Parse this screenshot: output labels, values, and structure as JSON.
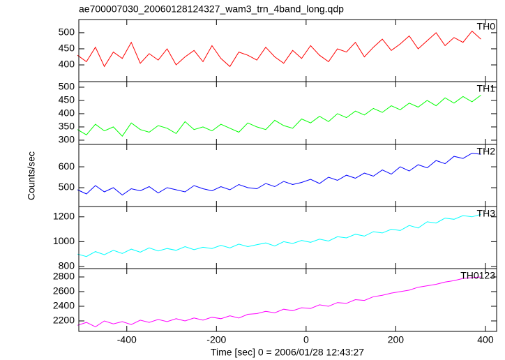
{
  "figure": {
    "title": "ae700007030_20060128124327_wam3_trn_4band_long.qdp",
    "xlabel": "Time [sec] 0 = 2006/01/28 12:43:27",
    "ylabel": "Counts/sec"
  },
  "chart_data": [
    {
      "type": "line",
      "title": "TH0",
      "color": "#ff0000",
      "x": [
        -510,
        -490,
        -470,
        -450,
        -430,
        -410,
        -390,
        -370,
        -350,
        -330,
        -310,
        -290,
        -270,
        -250,
        -230,
        -210,
        -190,
        -170,
        -150,
        -130,
        -110,
        -90,
        -70,
        -50,
        -30,
        -10,
        10,
        30,
        50,
        70,
        90,
        110,
        130,
        150,
        170,
        190,
        210,
        230,
        250,
        270,
        290,
        310,
        330,
        350,
        370,
        390
      ],
      "values": [
        430,
        410,
        455,
        395,
        440,
        420,
        470,
        405,
        435,
        415,
        450,
        400,
        425,
        445,
        410,
        460,
        420,
        395,
        440,
        430,
        415,
        455,
        425,
        405,
        445,
        420,
        460,
        430,
        410,
        450,
        440,
        470,
        425,
        455,
        480,
        445,
        465,
        490,
        450,
        475,
        500,
        460,
        485,
        470,
        505,
        480
      ],
      "xlim": [
        -507,
        425
      ],
      "ylim": [
        348,
        541
      ],
      "yticks": [
        400,
        450,
        500
      ]
    },
    {
      "type": "line",
      "title": "TH1",
      "color": "#00ff00",
      "x": [
        -510,
        -490,
        -470,
        -450,
        -430,
        -410,
        -390,
        -370,
        -350,
        -330,
        -310,
        -290,
        -270,
        -250,
        -230,
        -210,
        -190,
        -170,
        -150,
        -130,
        -110,
        -90,
        -70,
        -50,
        -30,
        -10,
        10,
        30,
        50,
        70,
        90,
        110,
        130,
        150,
        170,
        190,
        210,
        230,
        250,
        270,
        290,
        310,
        330,
        350,
        370,
        390
      ],
      "values": [
        340,
        320,
        360,
        335,
        350,
        315,
        365,
        340,
        330,
        355,
        345,
        325,
        370,
        340,
        350,
        335,
        360,
        345,
        330,
        365,
        350,
        340,
        375,
        355,
        345,
        380,
        365,
        390,
        370,
        400,
        385,
        410,
        395,
        420,
        405,
        430,
        415,
        440,
        425,
        450,
        430,
        460,
        440,
        465,
        445,
        470
      ],
      "xlim": [
        -507,
        425
      ],
      "ylim": [
        284,
        521
      ],
      "yticks": [
        300,
        350,
        400,
        450,
        500
      ]
    },
    {
      "type": "line",
      "title": "TH2",
      "color": "#0000ff",
      "x": [
        -510,
        -490,
        -470,
        -450,
        -430,
        -410,
        -390,
        -370,
        -350,
        -330,
        -310,
        -290,
        -270,
        -250,
        -230,
        -210,
        -190,
        -170,
        -150,
        -130,
        -110,
        -90,
        -70,
        -50,
        -30,
        -10,
        10,
        30,
        50,
        70,
        90,
        110,
        130,
        150,
        170,
        190,
        210,
        230,
        250,
        270,
        290,
        310,
        330,
        350,
        370,
        390
      ],
      "values": [
        490,
        470,
        510,
        480,
        500,
        465,
        495,
        485,
        505,
        475,
        500,
        490,
        480,
        510,
        495,
        485,
        505,
        490,
        515,
        500,
        495,
        520,
        505,
        530,
        515,
        525,
        540,
        520,
        550,
        535,
        560,
        545,
        570,
        555,
        585,
        565,
        600,
        580,
        610,
        595,
        630,
        615,
        650,
        640,
        665,
        660
      ],
      "xlim": [
        -507,
        425
      ],
      "ylim": [
        410,
        707
      ],
      "yticks": [
        500,
        600
      ]
    },
    {
      "type": "line",
      "title": "TH3",
      "color": "#00ffff",
      "x": [
        -510,
        -490,
        -470,
        -450,
        -430,
        -410,
        -390,
        -370,
        -350,
        -330,
        -310,
        -290,
        -270,
        -250,
        -230,
        -210,
        -190,
        -170,
        -150,
        -130,
        -110,
        -90,
        -70,
        -50,
        -30,
        -10,
        10,
        30,
        50,
        70,
        90,
        110,
        130,
        150,
        170,
        190,
        210,
        230,
        250,
        270,
        290,
        310,
        330,
        350,
        370,
        390
      ],
      "values": [
        900,
        880,
        920,
        895,
        930,
        905,
        940,
        915,
        950,
        925,
        945,
        930,
        960,
        935,
        955,
        945,
        970,
        950,
        980,
        960,
        975,
        990,
        965,
        1000,
        985,
        1010,
        995,
        1020,
        1005,
        1040,
        1030,
        1060,
        1045,
        1080,
        1070,
        1100,
        1090,
        1130,
        1110,
        1160,
        1150,
        1190,
        1180,
        1210,
        1200,
        1220
      ],
      "xlim": [
        -507,
        425
      ],
      "ylim": [
        783,
        1283
      ],
      "yticks": [
        800,
        1000,
        1200
      ]
    },
    {
      "type": "line",
      "title": "TH0123",
      "color": "#ff00ff",
      "x": [
        -510,
        -490,
        -470,
        -450,
        -430,
        -410,
        -390,
        -370,
        -350,
        -330,
        -310,
        -290,
        -270,
        -250,
        -230,
        -210,
        -190,
        -170,
        -150,
        -130,
        -110,
        -90,
        -70,
        -50,
        -30,
        -10,
        10,
        30,
        50,
        70,
        90,
        110,
        130,
        150,
        170,
        190,
        210,
        230,
        250,
        270,
        290,
        310,
        330,
        350,
        370,
        390
      ],
      "values": [
        2140,
        2180,
        2120,
        2200,
        2160,
        2190,
        2150,
        2210,
        2180,
        2220,
        2190,
        2230,
        2200,
        2240,
        2210,
        2250,
        2230,
        2270,
        2240,
        2290,
        2300,
        2330,
        2310,
        2360,
        2340,
        2380,
        2370,
        2420,
        2400,
        2450,
        2440,
        2490,
        2480,
        2530,
        2550,
        2580,
        2600,
        2620,
        2660,
        2680,
        2700,
        2730,
        2750,
        2780,
        2790,
        2800
      ],
      "xlim": [
        -507,
        425
      ],
      "ylim": [
        2057,
        2914
      ],
      "yticks": [
        2200,
        2400,
        2600,
        2800
      ],
      "xticks": [
        -400,
        -200,
        0,
        200,
        400
      ]
    }
  ]
}
